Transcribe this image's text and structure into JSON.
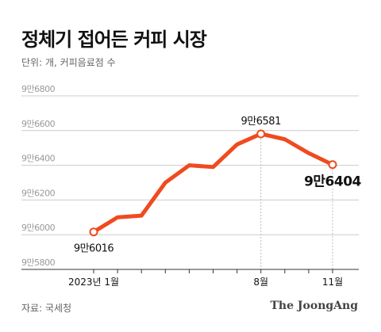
{
  "header": {
    "title": "정체기 접어든 커피 시장",
    "subtitle": "단위: 개, 커피음료점 수"
  },
  "footer": {
    "source": "자료: 국세청",
    "brand": "The JoongAng"
  },
  "colors": {
    "line": "#f04a1f",
    "grid": "#cccccc",
    "axis_text": "#999999",
    "text": "#111111"
  },
  "chart_data": {
    "type": "line",
    "title": "정체기 접어든 커피 시장",
    "subtitle": "단위: 개, 커피음료점 수",
    "ylim": [
      95800,
      96800
    ],
    "yticks": [
      95800,
      96000,
      96200,
      96400,
      96600,
      96800
    ],
    "ytick_labels": [
      "9만5800",
      "9만6000",
      "9만6200",
      "9만6400",
      "9만6600",
      "9만6800"
    ],
    "x": [
      1,
      2,
      3,
      4,
      5,
      6,
      7,
      8,
      9,
      10,
      11
    ],
    "xticks": [
      1,
      8,
      11
    ],
    "xtick_labels": [
      "2023년 1월",
      "8월",
      "11월"
    ],
    "series": [
      {
        "values": [
          96016,
          96100,
          96110,
          96300,
          96400,
          96390,
          96520,
          96581,
          96550,
          96470,
          96404
        ]
      }
    ],
    "annotations": [
      {
        "x": 1,
        "y": 96016,
        "label": "9만6016",
        "position": "below",
        "style": "normal"
      },
      {
        "x": 8,
        "y": 96581,
        "label": "9만6581",
        "position": "above",
        "style": "normal"
      },
      {
        "x": 11,
        "y": 96404,
        "label": "9만6404",
        "position": "below",
        "style": "bold"
      }
    ],
    "grid": true,
    "legend": "none"
  }
}
